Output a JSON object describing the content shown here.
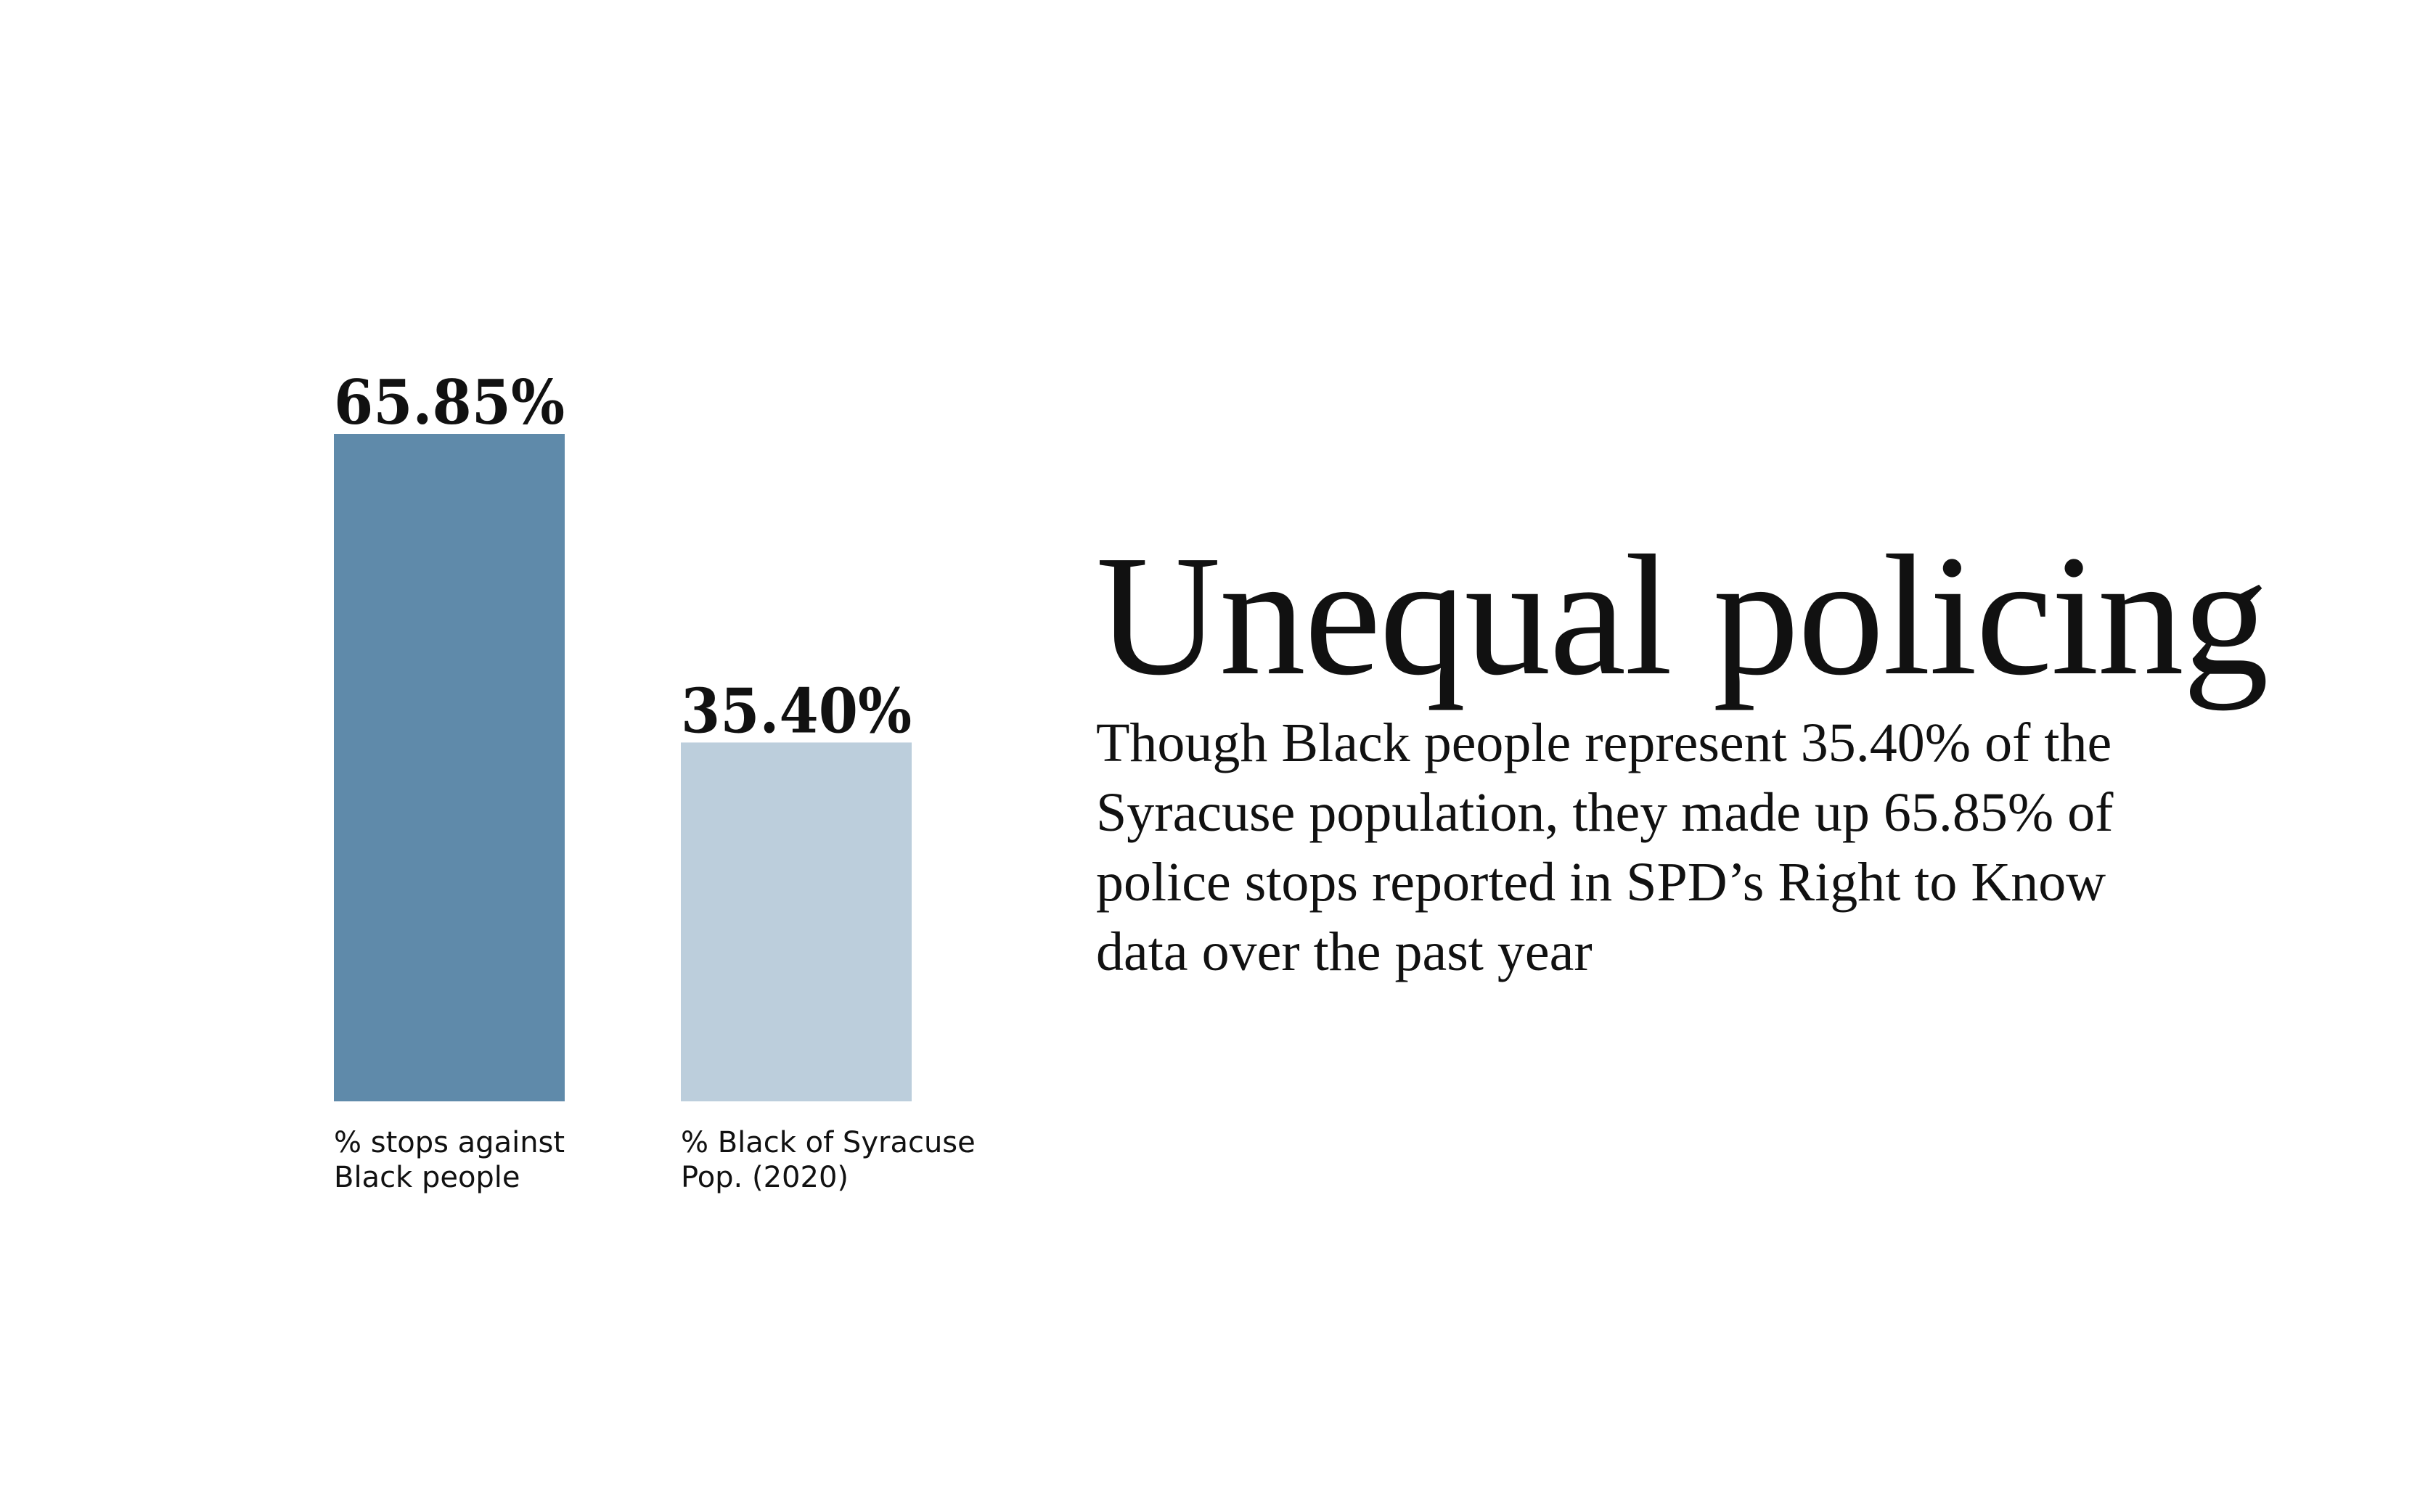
{
  "title": "Unequal policing",
  "description": "Though Black people represent 35.40% of the Syracuse population, they made up 65.85% of police stops reported in SPD’s Right to Know data over the past year",
  "chart_data": {
    "type": "bar",
    "categories": [
      "% stops against\nBlack people",
      "% Black of Syracuse\nPop. (2020)"
    ],
    "values": [
      65.85,
      35.4
    ],
    "value_labels": [
      "65.85%",
      "35.40%"
    ],
    "colors": [
      "#5f8aaa",
      "#bccedc"
    ],
    "ylim": [
      0,
      65.85
    ],
    "grid": false,
    "legend": "none"
  }
}
